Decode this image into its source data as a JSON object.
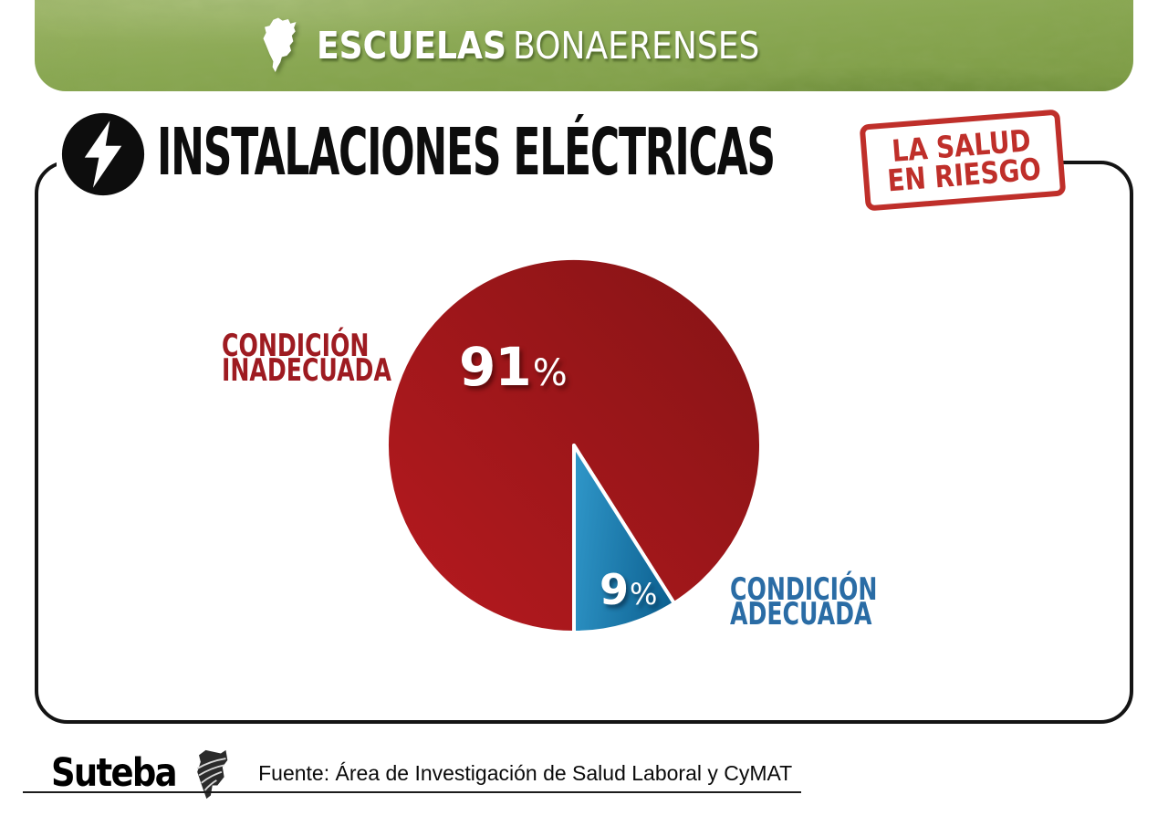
{
  "header": {
    "title_bold": "ESCUELAS",
    "title_light": "BONAERENSES",
    "background_green_light": "#9cb565",
    "background_green_dark": "#7b9a43"
  },
  "headline": {
    "text": "INSTALACIONES ELÉCTRICAS",
    "icon": "lightning-bolt-in-circle"
  },
  "stamp": {
    "line1": "LA SALUD",
    "line2": "EN RIESGO",
    "color": "#bf2f2a"
  },
  "chart_data": {
    "type": "pie",
    "title": "INSTALACIONES ELÉCTRICAS",
    "unit": "%",
    "start_angle_deg": 180,
    "direction": "clockwise",
    "separator_color": "#ffffff",
    "legend_position": "side-labels",
    "slices": [
      {
        "label": "CONDICIÓN INADECUADA",
        "label_line1": "CONDICIÓN",
        "label_line2": "INADECUADA",
        "value": 91,
        "pct_num": "91",
        "pct_sign": "%",
        "color_start": "#b2191e",
        "color_end": "#891416",
        "label_color": "#9e1b21"
      },
      {
        "label": "CONDICIÓN ADECUADA",
        "label_line1": "CONDICIÓN",
        "label_line2": "ADECUADA",
        "value": 9,
        "pct_num": "9",
        "pct_sign": "%",
        "color_start": "#2e94c6",
        "color_end": "#0d6191",
        "label_color": "#2a6ca5"
      }
    ]
  },
  "footer": {
    "logo_text": "Suteba",
    "source": "Fuente: Área de Investigación de Salud Laboral y CyMAT"
  }
}
